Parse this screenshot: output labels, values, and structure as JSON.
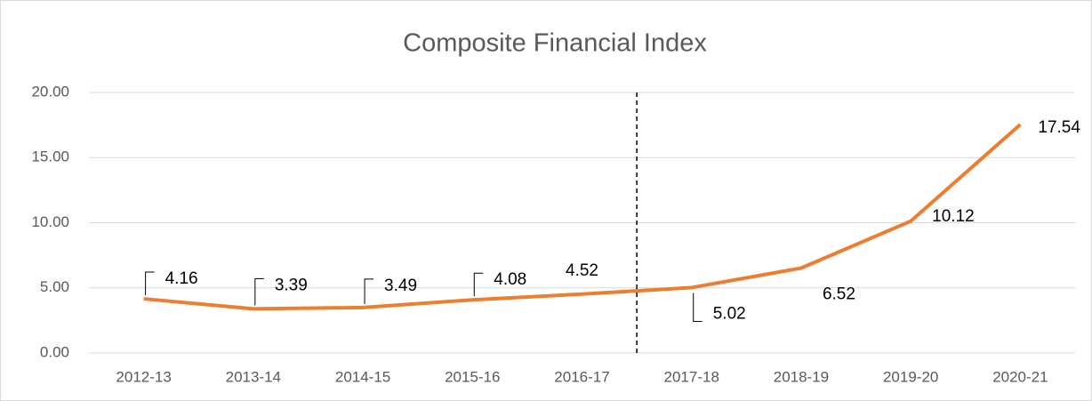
{
  "chart_data": {
    "type": "line",
    "title": "Composite Financial Index",
    "categories": [
      "2012-13",
      "2013-14",
      "2014-15",
      "2015-16",
      "2016-17",
      "2017-18",
      "2018-19",
      "2019-20",
      "2020-21"
    ],
    "values": [
      4.16,
      3.39,
      3.49,
      4.08,
      4.52,
      5.02,
      6.52,
      10.12,
      17.54
    ],
    "color": "#ed7d31",
    "ylim": [
      0,
      20
    ],
    "yticks": [
      {
        "value": 0,
        "label": "0.00"
      },
      {
        "value": 5,
        "label": "5.00"
      },
      {
        "value": 10,
        "label": "10.00"
      },
      {
        "value": 15,
        "label": "15.00"
      },
      {
        "value": 20,
        "label": "20.00"
      }
    ],
    "grid": true
  }
}
